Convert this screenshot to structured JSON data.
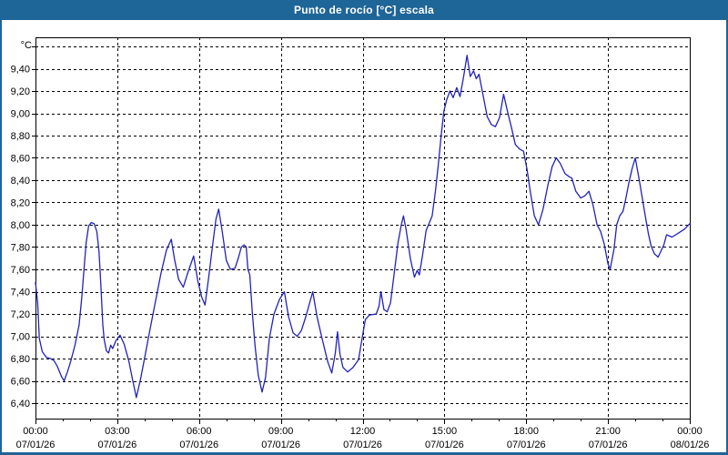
{
  "window": {
    "title": "Punto de rocío [°C] escala"
  },
  "colors": {
    "titlebar_bg": "#1e6598",
    "titlebar_text": "#ffffff",
    "window_border": "#1e6598",
    "plot_bg": "#ffffff",
    "grid": "#000000",
    "frame": "#000000",
    "series": "#2222bb",
    "label_text": "#000000"
  },
  "chart_data": {
    "type": "line",
    "title": "Punto de rocío [°C] escala",
    "y_unit_label": "°C",
    "grid": "dashed",
    "legend_position": "none",
    "y_axis": {
      "min_grid": 6.4,
      "max_grid": 9.6,
      "step": 0.2,
      "decimal_separator": ",",
      "tick_labels_top_to_bottom": [
        "9,40",
        "9,20",
        "9,00",
        "8,80",
        "8,60",
        "8,40",
        "8,20",
        "8,00",
        "7,80",
        "7,60",
        "7,40",
        "7,20",
        "7,00",
        "6,80",
        "6,60",
        "6,40"
      ],
      "top_gridline_unlabeled": 9.6
    },
    "x_axis": {
      "start_hour": 0,
      "end_hour": 24,
      "major_step_hours": 3,
      "minor_step_hours": 1,
      "tick_labels": [
        {
          "time": "00:00",
          "date": "07/01/26"
        },
        {
          "time": "03:00",
          "date": "07/01/26"
        },
        {
          "time": "06:00",
          "date": "07/01/26"
        },
        {
          "time": "09:00",
          "date": "07/01/26"
        },
        {
          "time": "12:00",
          "date": "07/01/26"
        },
        {
          "time": "15:00",
          "date": "07/01/26"
        },
        {
          "time": "18:00",
          "date": "07/01/26"
        },
        {
          "time": "21:00",
          "date": "07/01/26"
        },
        {
          "time": "00:00",
          "date": "08/01/26"
        }
      ]
    },
    "series": [
      {
        "name": "Punto de rocío",
        "color": "#2222bb",
        "points": [
          [
            0.0,
            7.48
          ],
          [
            0.08,
            7.3
          ],
          [
            0.14,
            6.98
          ],
          [
            0.25,
            6.86
          ],
          [
            0.4,
            6.81
          ],
          [
            0.55,
            6.8
          ],
          [
            0.68,
            6.78
          ],
          [
            0.8,
            6.73
          ],
          [
            0.95,
            6.64
          ],
          [
            1.05,
            6.6
          ],
          [
            1.17,
            6.68
          ],
          [
            1.3,
            6.78
          ],
          [
            1.45,
            6.92
          ],
          [
            1.6,
            7.1
          ],
          [
            1.7,
            7.35
          ],
          [
            1.78,
            7.6
          ],
          [
            1.86,
            7.84
          ],
          [
            1.95,
            7.99
          ],
          [
            2.05,
            8.02
          ],
          [
            2.15,
            8.01
          ],
          [
            2.25,
            7.94
          ],
          [
            2.33,
            7.76
          ],
          [
            2.4,
            7.45
          ],
          [
            2.47,
            7.1
          ],
          [
            2.52,
            6.97
          ],
          [
            2.6,
            6.87
          ],
          [
            2.68,
            6.85
          ],
          [
            2.76,
            6.92
          ],
          [
            2.83,
            6.89
          ],
          [
            2.95,
            6.96
          ],
          [
            3.1,
            7.01
          ],
          [
            3.25,
            6.93
          ],
          [
            3.42,
            6.78
          ],
          [
            3.56,
            6.61
          ],
          [
            3.7,
            6.45
          ],
          [
            3.85,
            6.61
          ],
          [
            4.0,
            6.8
          ],
          [
            4.2,
            7.06
          ],
          [
            4.4,
            7.31
          ],
          [
            4.6,
            7.56
          ],
          [
            4.8,
            7.77
          ],
          [
            4.98,
            7.87
          ],
          [
            5.1,
            7.69
          ],
          [
            5.25,
            7.51
          ],
          [
            5.42,
            7.44
          ],
          [
            5.6,
            7.58
          ],
          [
            5.8,
            7.72
          ],
          [
            5.95,
            7.5
          ],
          [
            6.1,
            7.35
          ],
          [
            6.22,
            7.28
          ],
          [
            6.35,
            7.52
          ],
          [
            6.5,
            7.82
          ],
          [
            6.62,
            8.05
          ],
          [
            6.72,
            8.14
          ],
          [
            6.85,
            7.94
          ],
          [
            7.0,
            7.68
          ],
          [
            7.15,
            7.6
          ],
          [
            7.32,
            7.61
          ],
          [
            7.45,
            7.71
          ],
          [
            7.55,
            7.8
          ],
          [
            7.65,
            7.82
          ],
          [
            7.73,
            7.8
          ],
          [
            7.79,
            7.6
          ],
          [
            7.86,
            7.55
          ],
          [
            7.95,
            7.22
          ],
          [
            8.05,
            6.92
          ],
          [
            8.17,
            6.65
          ],
          [
            8.31,
            6.5
          ],
          [
            8.44,
            6.63
          ],
          [
            8.58,
            6.98
          ],
          [
            8.75,
            7.2
          ],
          [
            8.95,
            7.33
          ],
          [
            9.13,
            7.4
          ],
          [
            9.28,
            7.18
          ],
          [
            9.45,
            7.03
          ],
          [
            9.6,
            7.0
          ],
          [
            9.75,
            7.05
          ],
          [
            9.92,
            7.18
          ],
          [
            10.17,
            7.4
          ],
          [
            10.33,
            7.17
          ],
          [
            10.53,
            6.96
          ],
          [
            10.72,
            6.77
          ],
          [
            10.87,
            6.67
          ],
          [
            11.0,
            6.85
          ],
          [
            11.08,
            7.04
          ],
          [
            11.17,
            6.84
          ],
          [
            11.28,
            6.72
          ],
          [
            11.45,
            6.68
          ],
          [
            11.65,
            6.72
          ],
          [
            11.85,
            6.79
          ],
          [
            12.0,
            7.01
          ],
          [
            12.1,
            7.15
          ],
          [
            12.25,
            7.19
          ],
          [
            12.5,
            7.2
          ],
          [
            12.6,
            7.27
          ],
          [
            12.67,
            7.4
          ],
          [
            12.78,
            7.24
          ],
          [
            12.9,
            7.22
          ],
          [
            13.02,
            7.3
          ],
          [
            13.15,
            7.55
          ],
          [
            13.3,
            7.84
          ],
          [
            13.42,
            8.0
          ],
          [
            13.5,
            8.08
          ],
          [
            13.6,
            7.95
          ],
          [
            13.75,
            7.7
          ],
          [
            13.9,
            7.53
          ],
          [
            14.0,
            7.59
          ],
          [
            14.08,
            7.55
          ],
          [
            14.2,
            7.73
          ],
          [
            14.33,
            7.95
          ],
          [
            14.45,
            8.02
          ],
          [
            14.55,
            8.08
          ],
          [
            14.67,
            8.3
          ],
          [
            14.78,
            8.55
          ],
          [
            14.88,
            8.8
          ],
          [
            14.98,
            9.02
          ],
          [
            15.08,
            9.12
          ],
          [
            15.2,
            9.2
          ],
          [
            15.32,
            9.14
          ],
          [
            15.45,
            9.23
          ],
          [
            15.57,
            9.15
          ],
          [
            15.7,
            9.32
          ],
          [
            15.83,
            9.52
          ],
          [
            15.95,
            9.33
          ],
          [
            16.07,
            9.38
          ],
          [
            16.17,
            9.31
          ],
          [
            16.27,
            9.35
          ],
          [
            16.42,
            9.16
          ],
          [
            16.57,
            8.97
          ],
          [
            16.72,
            8.9
          ],
          [
            16.87,
            8.88
          ],
          [
            17.02,
            8.96
          ],
          [
            17.17,
            9.17
          ],
          [
            17.32,
            9.01
          ],
          [
            17.47,
            8.86
          ],
          [
            17.6,
            8.72
          ],
          [
            17.75,
            8.68
          ],
          [
            17.9,
            8.66
          ],
          [
            18.03,
            8.5
          ],
          [
            18.15,
            8.3
          ],
          [
            18.3,
            8.08
          ],
          [
            18.45,
            8.0
          ],
          [
            18.62,
            8.14
          ],
          [
            18.8,
            8.36
          ],
          [
            18.95,
            8.52
          ],
          [
            19.1,
            8.6
          ],
          [
            19.25,
            8.55
          ],
          [
            19.42,
            8.46
          ],
          [
            19.58,
            8.43
          ],
          [
            19.67,
            8.42
          ],
          [
            19.82,
            8.3
          ],
          [
            20.0,
            8.24
          ],
          [
            20.15,
            8.26
          ],
          [
            20.3,
            8.3
          ],
          [
            20.45,
            8.18
          ],
          [
            20.6,
            8.0
          ],
          [
            20.73,
            7.94
          ],
          [
            20.86,
            7.83
          ],
          [
            21.0,
            7.65
          ],
          [
            21.08,
            7.6
          ],
          [
            21.22,
            7.78
          ],
          [
            21.32,
            8.0
          ],
          [
            21.43,
            8.08
          ],
          [
            21.55,
            8.12
          ],
          [
            21.65,
            8.23
          ],
          [
            21.76,
            8.37
          ],
          [
            21.88,
            8.5
          ],
          [
            22.0,
            8.6
          ],
          [
            22.14,
            8.41
          ],
          [
            22.25,
            8.25
          ],
          [
            22.38,
            8.06
          ],
          [
            22.48,
            7.92
          ],
          [
            22.58,
            7.81
          ],
          [
            22.7,
            7.74
          ],
          [
            22.84,
            7.71
          ],
          [
            23.05,
            7.82
          ],
          [
            23.15,
            7.91
          ],
          [
            23.35,
            7.89
          ],
          [
            23.55,
            7.92
          ],
          [
            23.8,
            7.96
          ],
          [
            24.0,
            8.01
          ]
        ]
      }
    ]
  }
}
